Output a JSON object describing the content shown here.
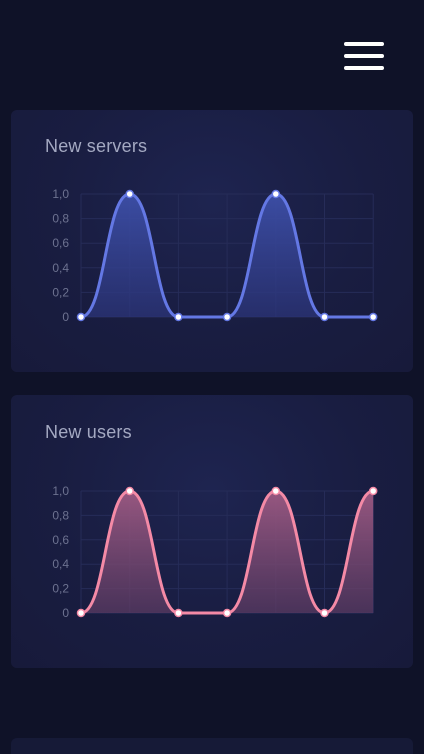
{
  "header": {
    "menu_icon": "hamburger-menu-icon"
  },
  "cards": [
    {
      "id": "servers",
      "title": "New servers",
      "accent": "#6478e4",
      "fill_top": "#3d4fa8",
      "fill_bottom": "#2b3478"
    },
    {
      "id": "users",
      "title": "New users",
      "accent": "#f48aa6",
      "fill_top": "#9e5a83",
      "fill_bottom": "#5a3a62"
    }
  ],
  "chart_data": [
    {
      "type": "area",
      "title": "New servers",
      "x": [
        0,
        1,
        2,
        3,
        4,
        5,
        6
      ],
      "y_ticks": [
        "0",
        "0,2",
        "0,4",
        "0,6",
        "0,8",
        "1,0"
      ],
      "ylim": [
        0,
        1
      ],
      "series": [
        {
          "values": [
            0,
            1,
            0,
            0,
            1,
            0,
            0
          ]
        }
      ],
      "grid": true
    },
    {
      "type": "area",
      "title": "New users",
      "x": [
        0,
        1,
        2,
        3,
        4,
        5,
        6
      ],
      "y_ticks": [
        "0",
        "0,2",
        "0,4",
        "0,6",
        "0,8",
        "1,0"
      ],
      "ylim": [
        0,
        1
      ],
      "series": [
        {
          "values": [
            0,
            1,
            0,
            0,
            1,
            0,
            1
          ]
        }
      ],
      "grid": true
    }
  ]
}
